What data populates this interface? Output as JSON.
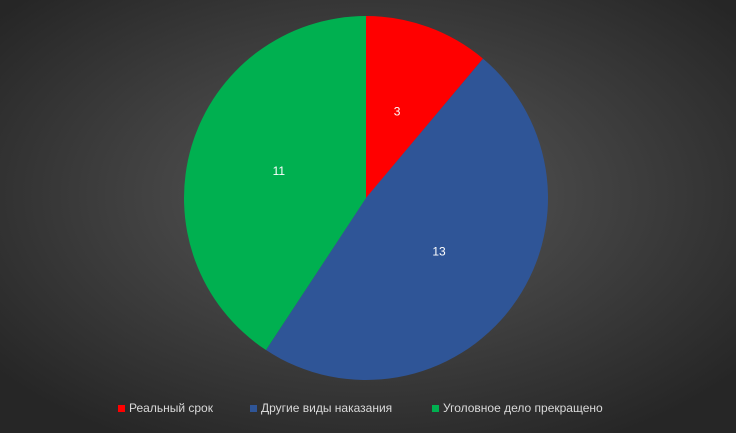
{
  "chart_data": {
    "type": "pie",
    "categories": [
      "Реальный срок",
      "Другие виды наказания",
      "Уголовное дело прекращено"
    ],
    "values": [
      3,
      13,
      11
    ],
    "colors": [
      "#ff0000",
      "#2f5597",
      "#00b050"
    ],
    "legend": "bottom"
  }
}
